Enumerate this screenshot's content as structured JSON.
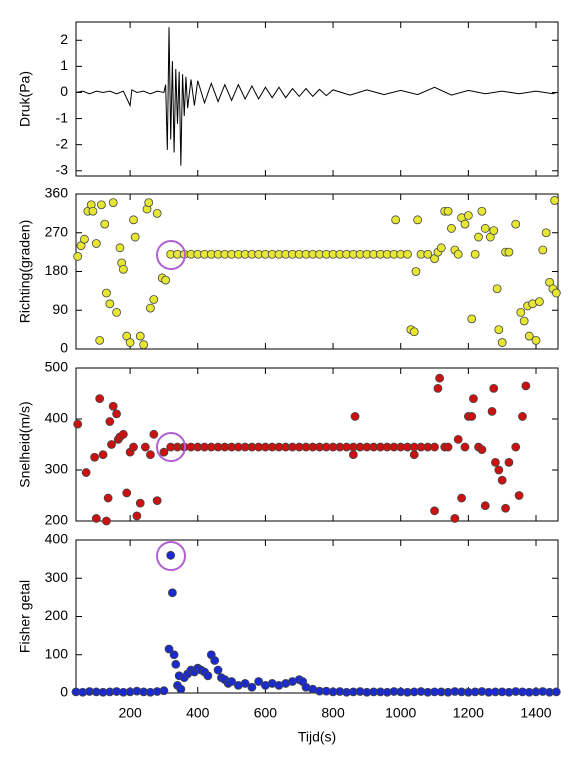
{
  "chart_data": [
    {
      "type": "line",
      "ylabel": "Druk(Pa)",
      "color": "#000000",
      "x": [
        40,
        60,
        80,
        100,
        120,
        140,
        160,
        180,
        200,
        205,
        220,
        240,
        260,
        280,
        300,
        305,
        310,
        315,
        320,
        325,
        330,
        335,
        340,
        345,
        350,
        355,
        360,
        365,
        370,
        380,
        390,
        400,
        420,
        440,
        460,
        480,
        500,
        520,
        540,
        560,
        580,
        600,
        620,
        640,
        660,
        680,
        700,
        720,
        740,
        760,
        780,
        800,
        850,
        900,
        950,
        1000,
        1050,
        1100,
        1150,
        1200,
        1250,
        1300,
        1350,
        1400,
        1450,
        1460
      ],
      "values": [
        0,
        0.05,
        -0.05,
        0.05,
        0,
        0.05,
        -0.05,
        0.05,
        -0.5,
        0.1,
        0,
        0.05,
        -0.05,
        0.05,
        0,
        0.3,
        -2.2,
        2.5,
        -1.8,
        1.2,
        -2.3,
        0.9,
        -1.2,
        0.8,
        -2.8,
        0.7,
        -0.9,
        0.6,
        -0.6,
        0.5,
        -0.5,
        0.45,
        -0.4,
        0.35,
        -0.35,
        0.3,
        -0.3,
        0.3,
        -0.25,
        0.25,
        -0.25,
        0.2,
        -0.2,
        0.2,
        -0.2,
        0.15,
        -0.15,
        0.15,
        -0.15,
        0.12,
        -0.12,
        0.1,
        -0.1,
        0.1,
        -0.08,
        0.08,
        -0.08,
        0.2,
        -0.1,
        0.08,
        -0.05,
        0.05,
        -0.05,
        0.05,
        -0.05,
        0
      ],
      "xlim": [
        40,
        1465
      ],
      "ylim": [
        -3.2,
        2.7
      ],
      "yticks": [
        2,
        1,
        0,
        -1,
        -2,
        -3
      ]
    },
    {
      "type": "scatter",
      "ylabel": "Richting(graden)",
      "color": "#e6e633",
      "x": [
        45,
        55,
        65,
        75,
        85,
        90,
        100,
        110,
        115,
        125,
        130,
        140,
        150,
        160,
        170,
        175,
        180,
        190,
        200,
        210,
        215,
        230,
        240,
        250,
        255,
        260,
        270,
        280,
        295,
        305,
        320,
        340,
        360,
        380,
        400,
        420,
        440,
        460,
        480,
        500,
        520,
        540,
        560,
        580,
        600,
        620,
        640,
        660,
        680,
        700,
        720,
        740,
        760,
        780,
        800,
        820,
        840,
        860,
        880,
        900,
        920,
        940,
        960,
        980,
        1000,
        1020,
        985,
        1030,
        1040,
        1045,
        1050,
        1060,
        1080,
        1100,
        1110,
        1120,
        1130,
        1140,
        1150,
        1160,
        1170,
        1180,
        1190,
        1200,
        1210,
        1220,
        1230,
        1240,
        1250,
        1265,
        1275,
        1285,
        1290,
        1300,
        1310,
        1320,
        1340,
        1355,
        1365,
        1375,
        1380,
        1390,
        1400,
        1410,
        1420,
        1430,
        1440,
        1450,
        1460,
        1455
      ],
      "values": [
        215,
        240,
        255,
        320,
        335,
        320,
        245,
        20,
        335,
        290,
        130,
        105,
        340,
        85,
        235,
        200,
        185,
        30,
        15,
        300,
        260,
        30,
        10,
        325,
        340,
        95,
        115,
        315,
        165,
        160,
        220,
        220,
        220,
        220,
        220,
        220,
        220,
        220,
        220,
        220,
        220,
        220,
        220,
        220,
        220,
        220,
        220,
        220,
        220,
        220,
        220,
        220,
        220,
        220,
        220,
        220,
        220,
        220,
        220,
        220,
        220,
        220,
        220,
        220,
        220,
        220,
        300,
        45,
        40,
        180,
        300,
        220,
        220,
        210,
        225,
        235,
        320,
        320,
        280,
        230,
        220,
        305,
        290,
        310,
        70,
        220,
        260,
        320,
        280,
        260,
        275,
        140,
        45,
        15,
        225,
        225,
        290,
        85,
        65,
        100,
        30,
        105,
        20,
        110,
        230,
        270,
        155,
        140,
        130,
        345
      ],
      "xlim": [
        40,
        1465
      ],
      "ylim": [
        0,
        360
      ],
      "yticks": [
        0,
        90,
        180,
        270,
        360
      ]
    },
    {
      "type": "scatter",
      "ylabel": "Snelheid(m/s)",
      "color": "#cc1111",
      "x": [
        45,
        70,
        95,
        100,
        110,
        120,
        130,
        135,
        140,
        145,
        150,
        160,
        165,
        170,
        180,
        190,
        200,
        210,
        220,
        230,
        245,
        260,
        270,
        280,
        300,
        320,
        340,
        360,
        380,
        400,
        420,
        440,
        460,
        480,
        500,
        520,
        540,
        560,
        580,
        600,
        620,
        640,
        660,
        680,
        700,
        720,
        740,
        760,
        780,
        800,
        820,
        840,
        860,
        880,
        900,
        920,
        940,
        960,
        980,
        1000,
        1020,
        1040,
        1060,
        1080,
        1100,
        860,
        865,
        1040,
        1100,
        1110,
        1115,
        1130,
        1140,
        1160,
        1170,
        1180,
        1190,
        1200,
        1210,
        1215,
        1230,
        1240,
        1250,
        1270,
        1275,
        1280,
        1290,
        1300,
        1310,
        1320,
        1340,
        1350,
        1360,
        1370
      ],
      "values": [
        390,
        295,
        325,
        205,
        440,
        330,
        200,
        245,
        395,
        350,
        425,
        410,
        360,
        365,
        370,
        255,
        335,
        345,
        210,
        235,
        345,
        330,
        370,
        240,
        335,
        345,
        345,
        345,
        345,
        345,
        345,
        345,
        345,
        345,
        345,
        345,
        345,
        345,
        345,
        345,
        345,
        345,
        345,
        345,
        345,
        345,
        345,
        345,
        345,
        345,
        345,
        345,
        345,
        345,
        345,
        345,
        345,
        345,
        345,
        345,
        345,
        345,
        345,
        345,
        345,
        330,
        405,
        330,
        220,
        460,
        480,
        345,
        345,
        205,
        360,
        245,
        345,
        405,
        405,
        440,
        345,
        340,
        230,
        415,
        460,
        315,
        300,
        280,
        225,
        315,
        345,
        250,
        405,
        465
      ],
      "xlim": [
        40,
        1465
      ],
      "ylim": [
        200,
        500
      ],
      "yticks": [
        200,
        300,
        400,
        500
      ]
    },
    {
      "type": "scatter",
      "ylabel": "Fisher getal",
      "xlabel": "Tijd(s)",
      "color": "#1a2acc",
      "x": [
        40,
        60,
        80,
        100,
        120,
        140,
        160,
        180,
        200,
        220,
        240,
        260,
        280,
        300,
        315,
        320,
        325,
        330,
        335,
        340,
        345,
        350,
        360,
        370,
        380,
        390,
        400,
        410,
        420,
        430,
        440,
        450,
        460,
        470,
        480,
        490,
        500,
        520,
        540,
        560,
        580,
        600,
        620,
        640,
        660,
        680,
        700,
        710,
        720,
        740,
        760,
        780,
        800,
        820,
        840,
        860,
        880,
        900,
        920,
        940,
        960,
        980,
        1000,
        1020,
        1040,
        1060,
        1080,
        1100,
        1120,
        1140,
        1160,
        1180,
        1200,
        1220,
        1240,
        1260,
        1280,
        1300,
        1320,
        1340,
        1360,
        1380,
        1400,
        1420,
        1440,
        1460
      ],
      "values": [
        3,
        2,
        4,
        3,
        2,
        3,
        4,
        2,
        3,
        5,
        3,
        2,
        4,
        6,
        115,
        360,
        262,
        100,
        75,
        20,
        45,
        10,
        40,
        50,
        60,
        55,
        65,
        60,
        55,
        45,
        100,
        85,
        60,
        40,
        35,
        25,
        30,
        20,
        25,
        15,
        30,
        20,
        25,
        20,
        25,
        30,
        35,
        30,
        15,
        10,
        5,
        5,
        3,
        4,
        2,
        3,
        4,
        2,
        3,
        3,
        2,
        4,
        3,
        2,
        3,
        4,
        2,
        3,
        3,
        2,
        4,
        3,
        2,
        3,
        4,
        2,
        3,
        3,
        2,
        4,
        3,
        2,
        3,
        4,
        2,
        3
      ],
      "xlim": [
        40,
        1465
      ],
      "ylim": [
        0,
        400
      ],
      "yticks": [
        0,
        100,
        200,
        300,
        400
      ],
      "xticks": [
        200,
        400,
        600,
        800,
        1000,
        1200,
        1400
      ]
    }
  ]
}
